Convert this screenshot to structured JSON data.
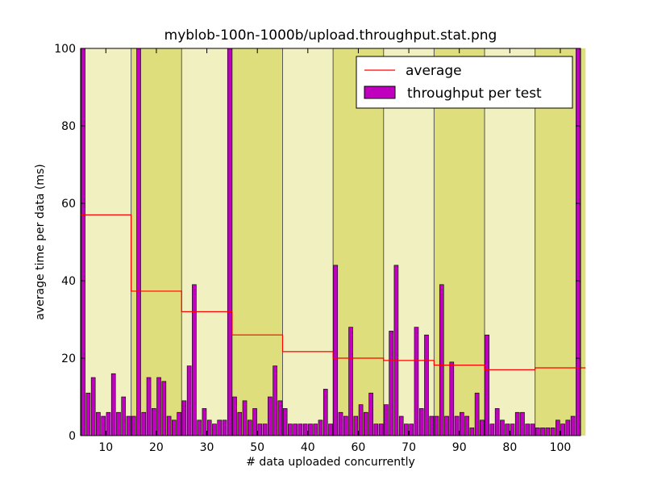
{
  "chart_data": {
    "type": "bar",
    "title": "myblob-100n-1000b/upload.throughput.stat.png",
    "xlabel": "# data uploaded concurrently",
    "ylabel": "average time per data (ms)",
    "ylim": [
      0,
      100
    ],
    "yticks": [
      0,
      20,
      40,
      60,
      80,
      100
    ],
    "xticks": [
      "10",
      "20",
      "30",
      "50",
      "40",
      "60",
      "70",
      "90",
      "80",
      "100"
    ],
    "legend_position": "top-right",
    "series": [
      {
        "name": "throughput per test",
        "color": "#bf00bf",
        "values": [
          100,
          11,
          15,
          6,
          5,
          6,
          16,
          6,
          10,
          5,
          5,
          100,
          6,
          15,
          7,
          15,
          14,
          5,
          4,
          6,
          9,
          18,
          39,
          4,
          7,
          4,
          3,
          4,
          4,
          100,
          10,
          6,
          9,
          4,
          7,
          3,
          3,
          10,
          18,
          9,
          7,
          3,
          3,
          3,
          3,
          3,
          3,
          4,
          12,
          3,
          44,
          6,
          5,
          28,
          5,
          8,
          6,
          11,
          3,
          3,
          8,
          27,
          44,
          5,
          3,
          3,
          28,
          7,
          26,
          5,
          5,
          39,
          5,
          19,
          5,
          6,
          5,
          2,
          11,
          4,
          26,
          3,
          7,
          4,
          3,
          3,
          6,
          6,
          3,
          3,
          2,
          2,
          2,
          2,
          4,
          3,
          4,
          5,
          100
        ]
      },
      {
        "name": "average",
        "color": "#ff0000",
        "steps": [
          {
            "from": 0,
            "to": 10,
            "value": 57
          },
          {
            "from": 10,
            "to": 20,
            "value": 37.3
          },
          {
            "from": 20,
            "to": 30,
            "value": 32
          },
          {
            "from": 30,
            "to": 40,
            "value": 26
          },
          {
            "from": 40,
            "to": 50,
            "value": 21.7
          },
          {
            "from": 50,
            "to": 60,
            "value": 20
          },
          {
            "from": 60,
            "to": 70,
            "value": 19.4
          },
          {
            "from": 70,
            "to": 80,
            "value": 18.2
          },
          {
            "from": 80,
            "to": 90,
            "value": 17
          },
          {
            "from": 90,
            "to": 100,
            "value": 17.5
          }
        ]
      }
    ],
    "group_band_colors": [
      "#f0f0c0",
      "#dede7c"
    ]
  }
}
